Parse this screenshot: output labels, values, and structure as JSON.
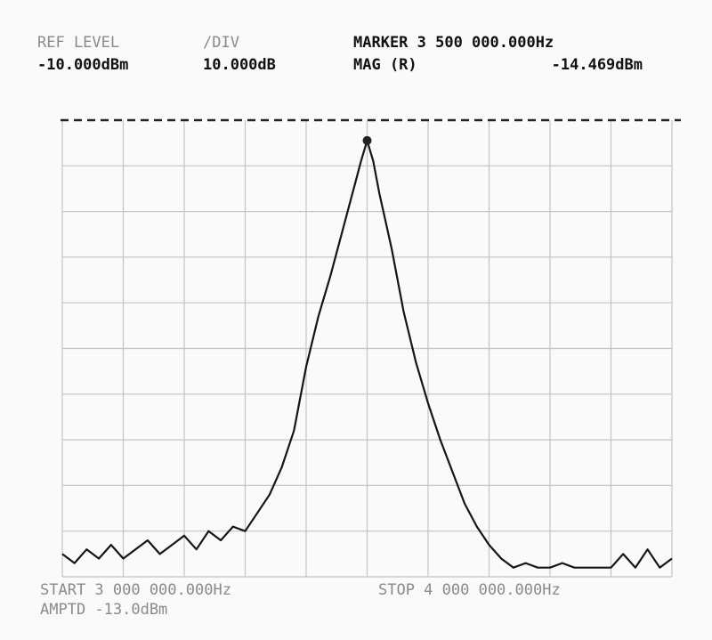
{
  "chart_data": {
    "type": "line",
    "ref_level_label": "REF LEVEL",
    "ref_level": "-10.000dBm",
    "div_label": "/DIV",
    "div": "10.000dB",
    "marker_label": "MARKER 3 500 000.000Hz",
    "mag_label": "MAG (R)",
    "mag": "-14.469dBm",
    "start": "START 3 000 000.000Hz",
    "stop": "STOP 4 000 000.000Hz",
    "amptd": "AMPTD -13.0dBm",
    "x": [
      3000000,
      3020000,
      3040000,
      3060000,
      3080000,
      3100000,
      3120000,
      3140000,
      3160000,
      3180000,
      3200000,
      3220000,
      3240000,
      3260000,
      3280000,
      3300000,
      3320000,
      3340000,
      3360000,
      3380000,
      3400000,
      3420000,
      3440000,
      3460000,
      3480000,
      3490000,
      3500000,
      3510000,
      3520000,
      3540000,
      3560000,
      3580000,
      3600000,
      3620000,
      3640000,
      3660000,
      3680000,
      3700000,
      3720000,
      3740000,
      3760000,
      3780000,
      3800000,
      3820000,
      3840000,
      3860000,
      3880000,
      3900000,
      3920000,
      3940000,
      3960000,
      3980000,
      4000000
    ],
    "series": [
      {
        "color": "#151515",
        "values": [
          -105,
          -107,
          -104,
          -106,
          -103,
          -106,
          -104,
          -102,
          -105,
          -103,
          -101,
          -104,
          -100,
          -102,
          -99,
          -100,
          -96,
          -92,
          -86,
          -78,
          -64,
          -53,
          -44,
          -34,
          -24,
          -19,
          -14.469,
          -19,
          -26,
          -38,
          -52,
          -63,
          -72,
          -80,
          -87,
          -94,
          -99,
          -103,
          -106,
          -108,
          -107,
          -108,
          -108,
          -107,
          -108,
          -108,
          -108,
          -108,
          -105,
          -108,
          -104,
          -108,
          -106
        ]
      }
    ],
    "marker": {
      "x": 3500000,
      "y": -14.469
    },
    "xlim": [
      3000000,
      4000000
    ],
    "ylim": [
      -110,
      -10
    ],
    "xticks": [
      3000000,
      3100000,
      3200000,
      3300000,
      3400000,
      3500000,
      3600000,
      3700000,
      3800000,
      3900000,
      4000000
    ],
    "yticks": [
      -110,
      -100,
      -90,
      -80,
      -70,
      -60,
      -50,
      -40,
      -30,
      -20,
      -10
    ],
    "grid": true
  }
}
